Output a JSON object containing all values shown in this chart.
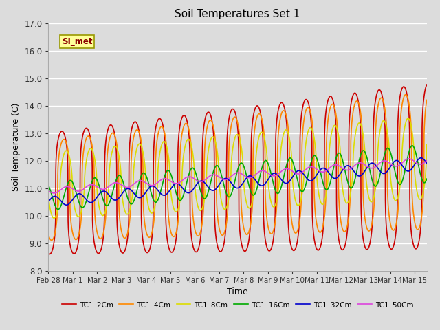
{
  "title": "Soil Temperatures Set 1",
  "xlabel": "Time",
  "ylabel": "Soil Temperature (C)",
  "ylim": [
    8.0,
    17.0
  ],
  "yticks": [
    8.0,
    9.0,
    10.0,
    11.0,
    12.0,
    13.0,
    14.0,
    15.0,
    16.0,
    17.0
  ],
  "xlim": [
    0,
    15.5
  ],
  "xtick_labels": [
    "Feb 28",
    "Mar 1",
    "Mar 2",
    "Mar 3",
    "Mar 4",
    "Mar 5",
    "Mar 6",
    "Mar 7",
    "Mar 8",
    "Mar 9",
    "Mar 10",
    "Mar 11",
    "Mar 12",
    "Mar 13",
    "Mar 14",
    "Mar 15"
  ],
  "xtick_positions": [
    0,
    1,
    2,
    3,
    4,
    5,
    6,
    7,
    8,
    9,
    10,
    11,
    12,
    13,
    14,
    15
  ],
  "series": [
    {
      "label": "TC1_2Cm",
      "color": "#cc0000",
      "lw": 1.2,
      "base_start": 10.8,
      "base_end": 11.8,
      "amp_start": 2.2,
      "amp_end": 3.0,
      "phase": 0.0,
      "sharpness": 4.0
    },
    {
      "label": "TC1_4Cm",
      "color": "#ff8800",
      "lw": 1.2,
      "base_start": 10.9,
      "base_end": 12.0,
      "amp_start": 1.8,
      "amp_end": 2.5,
      "phase": 0.08,
      "sharpness": 3.0
    },
    {
      "label": "TC1_8Cm",
      "color": "#dddd00",
      "lw": 1.2,
      "base_start": 11.1,
      "base_end": 12.1,
      "amp_start": 1.2,
      "amp_end": 1.5,
      "phase": 0.18,
      "sharpness": 1.8
    },
    {
      "label": "TC1_16Cm",
      "color": "#00aa00",
      "lw": 1.2,
      "base_start": 10.7,
      "base_end": 11.9,
      "amp_start": 0.5,
      "amp_end": 0.7,
      "phase": 0.35,
      "sharpness": 1.0
    },
    {
      "label": "TC1_32Cm",
      "color": "#0000cc",
      "lw": 1.2,
      "base_start": 10.5,
      "base_end": 11.9,
      "amp_start": 0.18,
      "amp_end": 0.22,
      "phase": 0.7,
      "sharpness": 1.0
    },
    {
      "label": "TC1_50Cm",
      "color": "#dd44dd",
      "lw": 1.2,
      "base_start": 10.9,
      "base_end": 12.0,
      "amp_start": 0.1,
      "amp_end": 0.12,
      "phase": 1.2,
      "sharpness": 1.0
    }
  ],
  "annotation_text": "SI_met",
  "bg_color": "#dcdcdc",
  "plot_bg_color": "#dcdcdc",
  "grid_color": "#ffffff",
  "fig_bg_color": "#dcdcdc"
}
